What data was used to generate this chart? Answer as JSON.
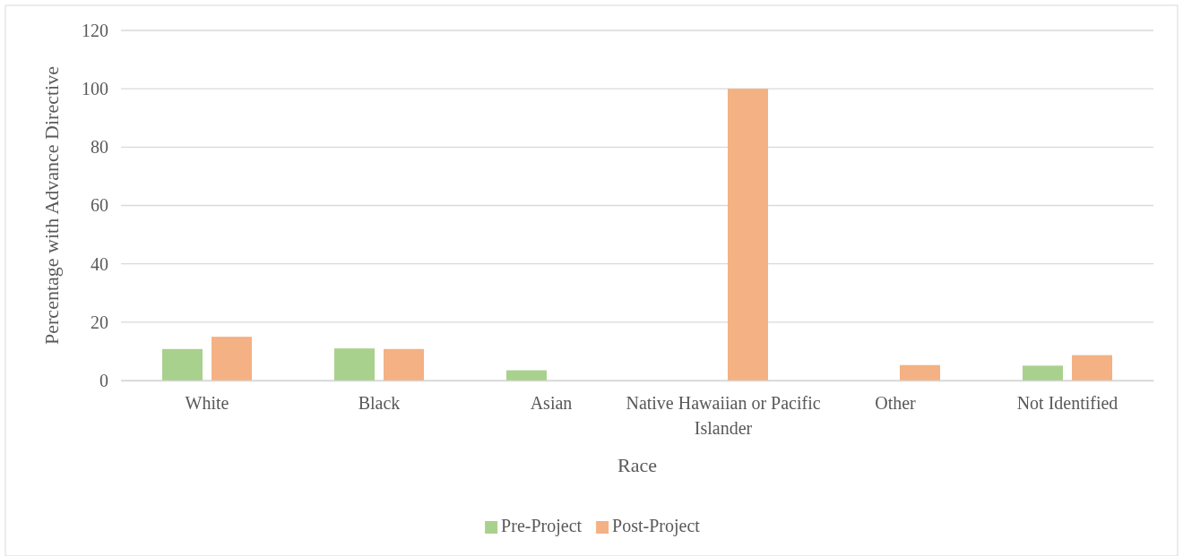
{
  "chart_data": {
    "type": "bar",
    "xlabel": "Race",
    "ylabel": "Percentage with Advance Directive",
    "categories": [
      "White",
      "Black",
      "Asian",
      "Native Hawaiian or Pacific Islander",
      "Other",
      "Not Identified"
    ],
    "series": [
      {
        "name": "Pre-Project",
        "color": "#a9d18e",
        "values": [
          10.8,
          11.0,
          3.5,
          0,
          0,
          5.1
        ]
      },
      {
        "name": "Post-Project",
        "color": "#f4b183",
        "values": [
          15.0,
          10.8,
          0,
          100,
          5.3,
          8.7
        ]
      }
    ],
    "ylim": [
      0,
      120
    ],
    "yticks": [
      0,
      20,
      40,
      60,
      80,
      100,
      120
    ],
    "grid": "y",
    "legend": "bottom"
  }
}
